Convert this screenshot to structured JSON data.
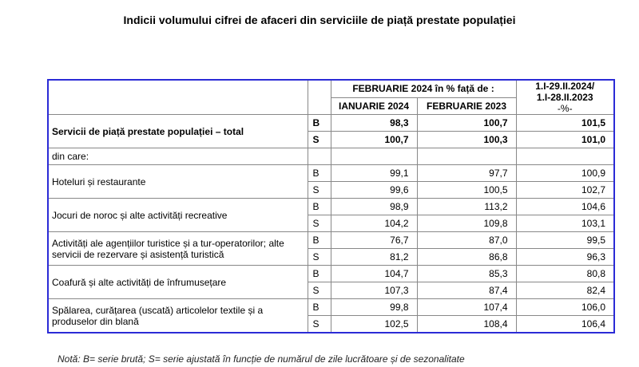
{
  "title": "Indicii volumului cifrei de afaceri din serviciile de piață prestate populației",
  "header": {
    "group_label": "FEBRUARIE 2024 în % față de :",
    "col1": "IANUARIE 2024",
    "col2": "FEBRUARIE 2023",
    "col3_line1": "1.I-29.II.2024/",
    "col3_line2": "1.I-28.II.2023",
    "col3_line3": "-%-"
  },
  "total": {
    "label": "Servicii de piață prestate populației –  total",
    "rows": [
      {
        "series": "B",
        "v1": "98,3",
        "v2": "100,7",
        "v3": "101,5"
      },
      {
        "series": "S",
        "v1": "100,7",
        "v2": "100,3",
        "v3": "101,0"
      }
    ]
  },
  "din_care": "din care:",
  "categories": [
    {
      "label": "Hoteluri și restaurante",
      "rows": [
        {
          "series": "B",
          "v1": "99,1",
          "v2": "97,7",
          "v3": "100,9"
        },
        {
          "series": "S",
          "v1": "99,6",
          "v2": "100,5",
          "v3": "102,7"
        }
      ]
    },
    {
      "label": "Jocuri de noroc și alte activități recreative",
      "rows": [
        {
          "series": "B",
          "v1": "98,9",
          "v2": "113,2",
          "v3": "104,6"
        },
        {
          "series": "S",
          "v1": "104,2",
          "v2": "109,8",
          "v3": "103,1"
        }
      ]
    },
    {
      "label": "Activități ale agențiilor turistice și a tur-operatorilor; alte servicii de rezervare și asistență turistică",
      "rows": [
        {
          "series": "B",
          "v1": "76,7",
          "v2": "87,0",
          "v3": "99,5"
        },
        {
          "series": "S",
          "v1": "81,2",
          "v2": "86,8",
          "v3": "96,3"
        }
      ]
    },
    {
      "label": "Coafură și alte activități de înfrumusețare",
      "rows": [
        {
          "series": "B",
          "v1": "104,7",
          "v2": "85,3",
          "v3": "80,8"
        },
        {
          "series": "S",
          "v1": "107,3",
          "v2": "87,4",
          "v3": "82,4"
        }
      ]
    },
    {
      "label": "Spălarea, curățarea (uscată) articolelor textile și a produselor din blană",
      "rows": [
        {
          "series": "B",
          "v1": "99,8",
          "v2": "107,4",
          "v3": "106,0"
        },
        {
          "series": "S",
          "v1": "102,5",
          "v2": "108,4",
          "v3": "106,4"
        }
      ]
    }
  ],
  "note": "Notă: B= serie brută; S= serie ajustată în funcție de numărul de zile lucrătoare și de sezonalitate"
}
